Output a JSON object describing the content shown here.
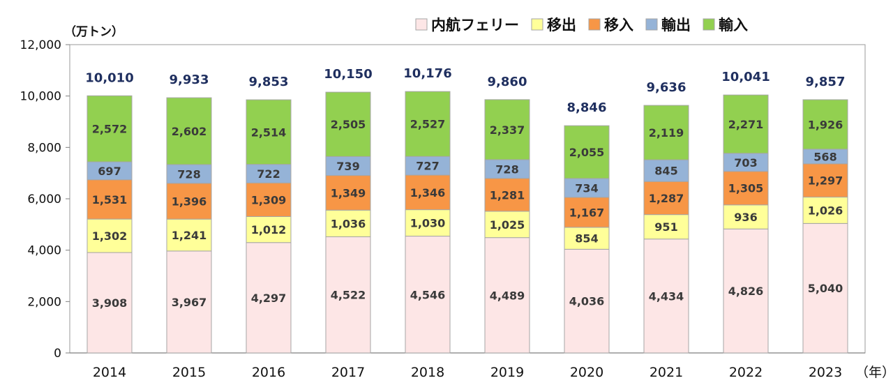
{
  "unit_label": "（万トン）",
  "x_unit_label": "（年）",
  "chart_data": {
    "type": "bar",
    "stacked": true,
    "categories": [
      "2014",
      "2015",
      "2016",
      "2017",
      "2018",
      "2019",
      "2020",
      "2021",
      "2022",
      "2023"
    ],
    "series": [
      {
        "name": "内航フェリー",
        "color": "#fde6e6",
        "values": [
          3908,
          3967,
          4297,
          4522,
          4546,
          4489,
          4036,
          4434,
          4826,
          5040
        ]
      },
      {
        "name": "移出",
        "color": "#ffff99",
        "values": [
          1302,
          1241,
          1012,
          1036,
          1030,
          1025,
          854,
          951,
          936,
          1026
        ]
      },
      {
        "name": "移入",
        "color": "#f79646",
        "values": [
          1531,
          1396,
          1309,
          1349,
          1346,
          1281,
          1167,
          1287,
          1305,
          1297
        ]
      },
      {
        "name": "輸出",
        "color": "#95b3d7",
        "values": [
          697,
          728,
          722,
          739,
          727,
          728,
          734,
          845,
          703,
          568
        ]
      },
      {
        "name": "輸入",
        "color": "#92d050",
        "values": [
          2572,
          2602,
          2514,
          2505,
          2527,
          2337,
          2055,
          2119,
          2271,
          1926
        ]
      }
    ],
    "totals": [
      10010,
      9933,
      9853,
      10150,
      10176,
      9860,
      8846,
      9636,
      10041,
      9857
    ],
    "ylim": [
      0,
      12000
    ],
    "yticks": [
      0,
      2000,
      4000,
      6000,
      8000,
      10000,
      12000
    ],
    "ytick_labels": [
      "0",
      "2,000",
      "4,000",
      "6,000",
      "8,000",
      "10,000",
      "12,000"
    ],
    "grid": false,
    "legend_position": "top-right"
  }
}
